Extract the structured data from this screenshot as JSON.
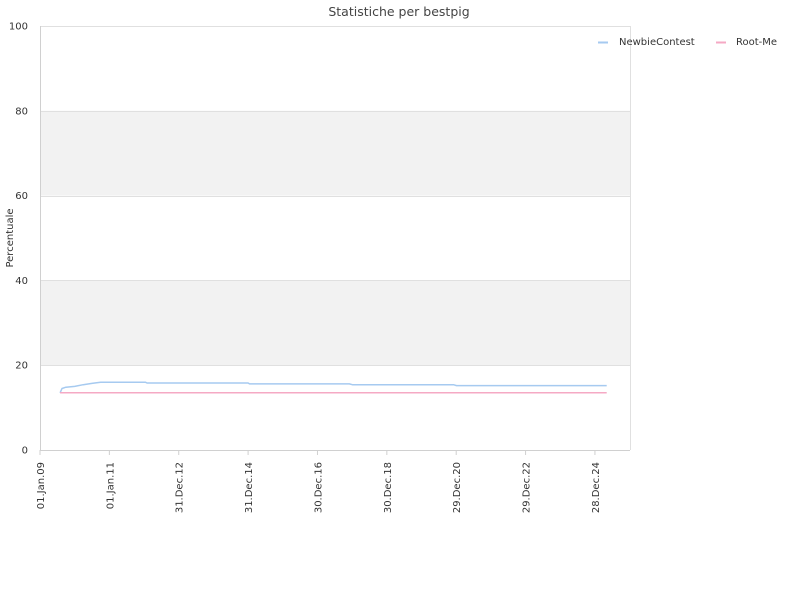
{
  "chart_data": {
    "type": "line",
    "title": "Statistiche per bestpig",
    "xlabel": "",
    "ylabel": "Percentuale",
    "x_tick_labels": [
      "01.Jan.09",
      "01.Jan.11",
      "31.Dec.12",
      "31.Dec.14",
      "30.Dec.16",
      "30.Dec.18",
      "29.Dec.20",
      "29.Dec.22",
      "28.Dec.24"
    ],
    "y_ticks": [
      0,
      20,
      40,
      60,
      80,
      100
    ],
    "xlim": [
      "2009-01-01",
      "2026-01-01"
    ],
    "ylim": [
      0,
      100
    ],
    "grid": true,
    "alternating_bands": true,
    "legend_position": "top-right",
    "series": [
      {
        "name": "NewbieContest",
        "color": "#a6caf0",
        "points": [
          [
            "2009-08-01",
            13.5
          ],
          [
            "2009-08-20",
            14.5
          ],
          [
            "2009-10-01",
            14.8
          ],
          [
            "2010-01-01",
            15.0
          ],
          [
            "2010-04-01",
            15.4
          ],
          [
            "2010-07-01",
            15.7
          ],
          [
            "2010-10-01",
            16.0
          ],
          [
            "2011-06-01",
            16.0
          ],
          [
            "2012-01-15",
            16.0
          ],
          [
            "2012-02-01",
            15.8
          ],
          [
            "2014-12-31",
            15.8
          ],
          [
            "2015-01-15",
            15.6
          ],
          [
            "2017-12-01",
            15.6
          ],
          [
            "2018-01-01",
            15.4
          ],
          [
            "2020-12-01",
            15.4
          ],
          [
            "2021-01-01",
            15.2
          ],
          [
            "2025-05-01",
            15.2
          ]
        ]
      },
      {
        "name": "Root-Me",
        "color": "#f5a9c4",
        "points": [
          [
            "2009-08-01",
            13.5
          ],
          [
            "2025-05-01",
            13.5
          ]
        ]
      }
    ]
  }
}
